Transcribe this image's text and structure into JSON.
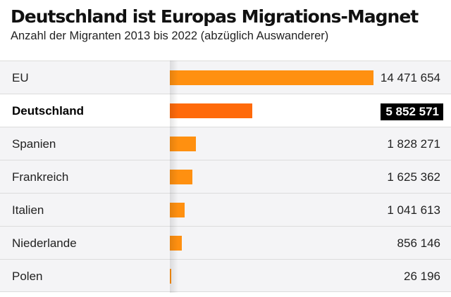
{
  "header": {
    "title": "Deutschland ist Europas Migrations-Magnet",
    "subtitle": "Anzahl der Migranten 2013 bis 2022 (abzüglich Auswanderer)"
  },
  "rows": [
    {
      "label": "EU",
      "value_text": "14 471 654"
    },
    {
      "label": "Deutschland",
      "value_text": "5 852 571"
    },
    {
      "label": "Spanien",
      "value_text": "1 828 271"
    },
    {
      "label": "Frankreich",
      "value_text": "1 625 362"
    },
    {
      "label": "Italien",
      "value_text": "1 041 613"
    },
    {
      "label": "Niederlande",
      "value_text": "856 146"
    },
    {
      "label": "Polen",
      "value_text": "26 196"
    }
  ],
  "colors": {
    "bar": "#ff9010",
    "bar_highlight": "#ff6a0a",
    "highlight_value_bg": "#000000"
  },
  "chart_data": {
    "type": "bar",
    "orientation": "horizontal",
    "title": "Deutschland ist Europas Migrations-Magnet",
    "subtitle": "Anzahl der Migranten 2013 bis 2022 (abzüglich Auswanderer)",
    "categories": [
      "EU",
      "Deutschland",
      "Spanien",
      "Frankreich",
      "Italien",
      "Niederlande",
      "Polen"
    ],
    "values": [
      14471654,
      5852571,
      1828271,
      1625362,
      1041613,
      856146,
      26196
    ],
    "highlight": "Deutschland",
    "xlim": [
      0,
      14471654
    ],
    "grid": false,
    "legend": "none"
  }
}
